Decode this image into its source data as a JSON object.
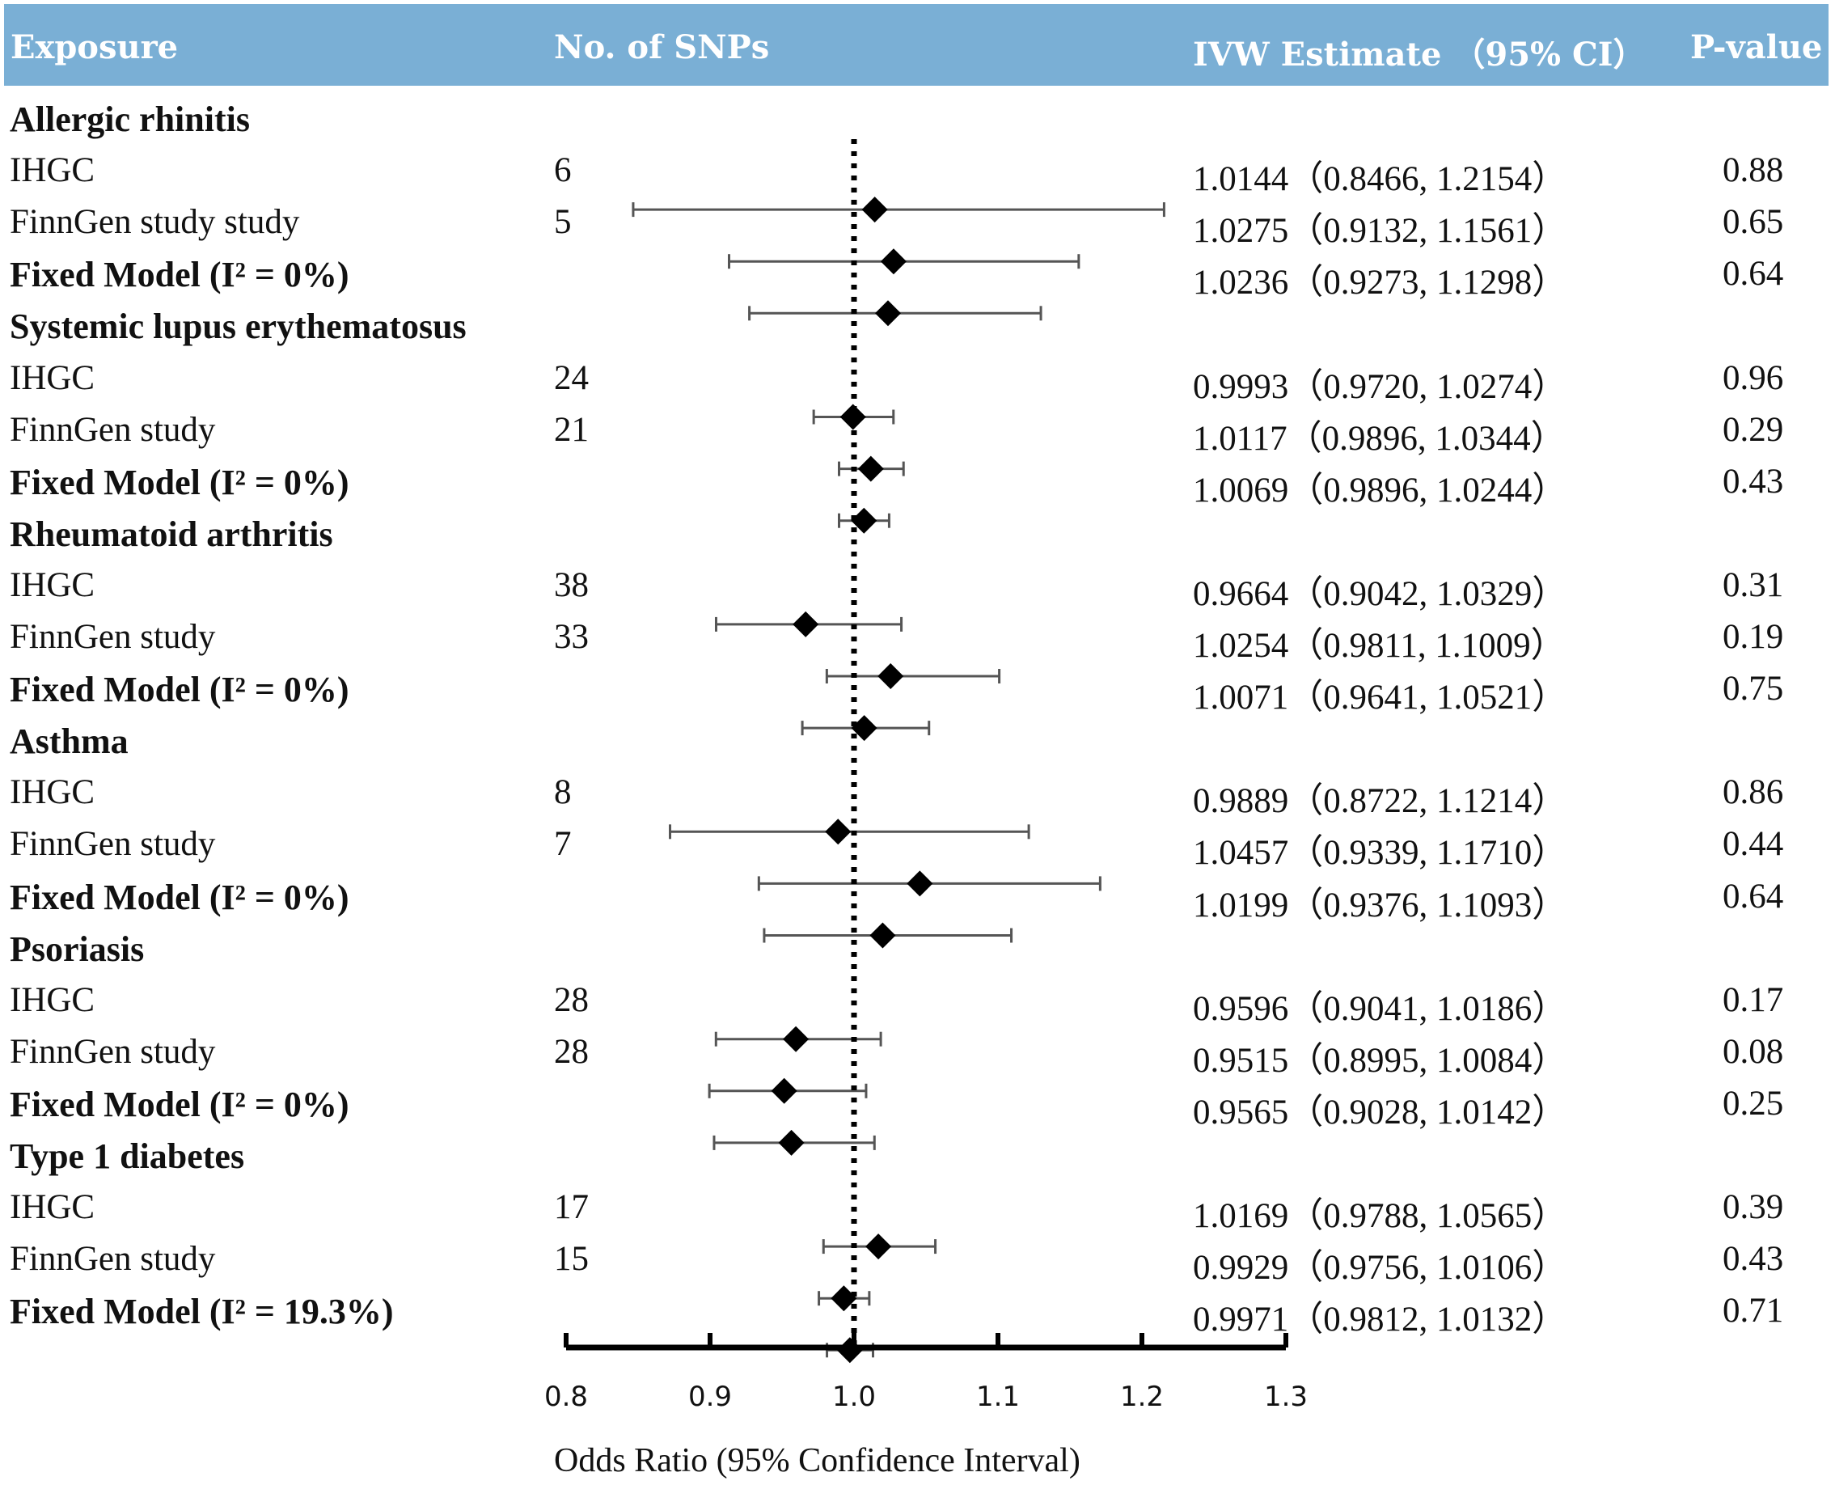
{
  "header": {
    "exposure": "Exposure",
    "snps": "No. of SNPs",
    "estimate": "IVW Estimate （95% CI）",
    "pvalue": "P-value"
  },
  "colors": {
    "header_bg": "#7aafd5",
    "header_text": "#ffffff",
    "marker": "#000000",
    "ci_line": "#555555"
  },
  "rows": [
    {
      "type": "group",
      "label": "Allergic rhinitis"
    },
    {
      "type": "study",
      "label": "IHGC",
      "snps": "6",
      "or": 1.0144,
      "lo": 0.8466,
      "hi": 1.2154,
      "est_text": "1.0144（0.8466, 1.2154）",
      "p": "0.88"
    },
    {
      "type": "study",
      "label": "FinnGen study study",
      "snps": "5",
      "or": 1.0275,
      "lo": 0.9132,
      "hi": 1.1561,
      "est_text": "1.0275（0.9132, 1.1561）",
      "p": "0.65"
    },
    {
      "type": "fixed",
      "label": "Fixed Model (I² = 0%)",
      "snps": "",
      "or": 1.0236,
      "lo": 0.9273,
      "hi": 1.1298,
      "est_text": "1.0236（0.9273, 1.1298）",
      "p": "0.64"
    },
    {
      "type": "group",
      "label": "Systemic lupus erythematosus"
    },
    {
      "type": "study",
      "label": "IHGC",
      "snps": "24",
      "or": 0.9993,
      "lo": 0.972,
      "hi": 1.0274,
      "est_text": "0.9993（0.9720, 1.0274）",
      "p": "0.96"
    },
    {
      "type": "study",
      "label": "FinnGen study",
      "snps": "21",
      "or": 1.0117,
      "lo": 0.9896,
      "hi": 1.0344,
      "est_text": "1.0117（0.9896, 1.0344）",
      "p": "0.29"
    },
    {
      "type": "fixed",
      "label": "Fixed Model (I² = 0%)",
      "snps": "",
      "or": 1.0069,
      "lo": 0.9896,
      "hi": 1.0244,
      "est_text": "1.0069（0.9896, 1.0244）",
      "p": "0.43"
    },
    {
      "type": "group",
      "label": "Rheumatoid arthritis"
    },
    {
      "type": "study",
      "label": "IHGC",
      "snps": "38",
      "or": 0.9664,
      "lo": 0.9042,
      "hi": 1.0329,
      "est_text": "0.9664（0.9042, 1.0329）",
      "p": "0.31"
    },
    {
      "type": "study",
      "label": "FinnGen study",
      "snps": "33",
      "or": 1.0254,
      "lo": 0.9811,
      "hi": 1.1009,
      "est_text": "1.0254（0.9811, 1.1009）",
      "p": "0.19"
    },
    {
      "type": "fixed",
      "label": "Fixed Model (I² = 0%)",
      "snps": "",
      "or": 1.0071,
      "lo": 0.9641,
      "hi": 1.0521,
      "est_text": "1.0071（0.9641, 1.0521）",
      "p": "0.75"
    },
    {
      "type": "group",
      "label": "Asthma"
    },
    {
      "type": "study",
      "label": "IHGC",
      "snps": "8",
      "or": 0.9889,
      "lo": 0.8722,
      "hi": 1.1214,
      "est_text": "0.9889（0.8722, 1.1214）",
      "p": "0.86"
    },
    {
      "type": "study",
      "label": "FinnGen study",
      "snps": "7",
      "or": 1.0457,
      "lo": 0.9339,
      "hi": 1.171,
      "est_text": "1.0457（0.9339, 1.1710）",
      "p": "0.44"
    },
    {
      "type": "fixed",
      "label": "Fixed Model (I² = 0%)",
      "snps": "",
      "or": 1.0199,
      "lo": 0.9376,
      "hi": 1.1093,
      "est_text": "1.0199（0.9376, 1.1093）",
      "p": "0.64"
    },
    {
      "type": "group",
      "label": "Psoriasis"
    },
    {
      "type": "study",
      "label": "IHGC",
      "snps": "28",
      "or": 0.9596,
      "lo": 0.9041,
      "hi": 1.0186,
      "est_text": "0.9596（0.9041, 1.0186）",
      "p": "0.17"
    },
    {
      "type": "study",
      "label": "FinnGen study",
      "snps": "28",
      "or": 0.9515,
      "lo": 0.8995,
      "hi": 1.0084,
      "est_text": "0.9515（0.8995, 1.0084）",
      "p": "0.08"
    },
    {
      "type": "fixed",
      "label": "Fixed Model (I² = 0%)",
      "snps": "",
      "or": 0.9565,
      "lo": 0.9028,
      "hi": 1.0142,
      "est_text": "0.9565（0.9028, 1.0142）",
      "p": "0.25"
    },
    {
      "type": "group",
      "label": "Type 1 diabetes"
    },
    {
      "type": "study",
      "label": "IHGC",
      "snps": "17",
      "or": 1.0169,
      "lo": 0.9788,
      "hi": 1.0565,
      "est_text": "1.0169（0.9788, 1.0565）",
      "p": "0.39"
    },
    {
      "type": "study",
      "label": "FinnGen study",
      "snps": "15",
      "or": 0.9929,
      "lo": 0.9756,
      "hi": 1.0106,
      "est_text": "0.9929（0.9756, 1.0106）",
      "p": "0.43"
    },
    {
      "type": "fixed",
      "label": "Fixed Model (I² = 19.3%)",
      "snps": "",
      "or": 0.9971,
      "lo": 0.9812,
      "hi": 1.0132,
      "est_text": "0.9971（0.9812, 1.0132）",
      "p": "0.71"
    }
  ],
  "chart_data": {
    "type": "forest",
    "xlabel": "Odds Ratio (95% Confidence Interval)",
    "xlim": [
      0.8,
      1.3
    ],
    "ticks": [
      0.8,
      0.9,
      1.0,
      1.1,
      1.2,
      1.3
    ],
    "tick_labels": [
      "0.8",
      "0.9",
      "1.0",
      "1.1",
      "1.2",
      "1.3"
    ],
    "reference_line": 1.0,
    "groups": [
      {
        "exposure": "Allergic rhinitis",
        "studies": [
          {
            "name": "IHGC",
            "snps": 6,
            "or": 1.0144,
            "ci": [
              0.8466,
              1.2154
            ],
            "p": 0.88
          },
          {
            "name": "FinnGen study study",
            "snps": 5,
            "or": 1.0275,
            "ci": [
              0.9132,
              1.1561
            ],
            "p": 0.65
          },
          {
            "name": "Fixed Model (I² = 0%)",
            "or": 1.0236,
            "ci": [
              0.9273,
              1.1298
            ],
            "p": 0.64
          }
        ]
      },
      {
        "exposure": "Systemic lupus erythematosus",
        "studies": [
          {
            "name": "IHGC",
            "snps": 24,
            "or": 0.9993,
            "ci": [
              0.972,
              1.0274
            ],
            "p": 0.96
          },
          {
            "name": "FinnGen study",
            "snps": 21,
            "or": 1.0117,
            "ci": [
              0.9896,
              1.0344
            ],
            "p": 0.29
          },
          {
            "name": "Fixed Model (I² = 0%)",
            "or": 1.0069,
            "ci": [
              0.9896,
              1.0244
            ],
            "p": 0.43
          }
        ]
      },
      {
        "exposure": "Rheumatoid arthritis",
        "studies": [
          {
            "name": "IHGC",
            "snps": 38,
            "or": 0.9664,
            "ci": [
              0.9042,
              1.0329
            ],
            "p": 0.31
          },
          {
            "name": "FinnGen study",
            "snps": 33,
            "or": 1.0254,
            "ci": [
              0.9811,
              1.1009
            ],
            "p": 0.19
          },
          {
            "name": "Fixed Model (I² = 0%)",
            "or": 1.0071,
            "ci": [
              0.9641,
              1.0521
            ],
            "p": 0.75
          }
        ]
      },
      {
        "exposure": "Asthma",
        "studies": [
          {
            "name": "IHGC",
            "snps": 8,
            "or": 0.9889,
            "ci": [
              0.8722,
              1.1214
            ],
            "p": 0.86
          },
          {
            "name": "FinnGen study",
            "snps": 7,
            "or": 1.0457,
            "ci": [
              0.9339,
              1.171
            ],
            "p": 0.44
          },
          {
            "name": "Fixed Model (I² = 0%)",
            "or": 1.0199,
            "ci": [
              0.9376,
              1.1093
            ],
            "p": 0.64
          }
        ]
      },
      {
        "exposure": "Psoriasis",
        "studies": [
          {
            "name": "IHGC",
            "snps": 28,
            "or": 0.9596,
            "ci": [
              0.9041,
              1.0186
            ],
            "p": 0.17
          },
          {
            "name": "FinnGen study",
            "snps": 28,
            "or": 0.9515,
            "ci": [
              0.8995,
              1.0084
            ],
            "p": 0.08
          },
          {
            "name": "Fixed Model (I² = 0%)",
            "or": 0.9565,
            "ci": [
              0.9028,
              1.0142
            ],
            "p": 0.25
          }
        ]
      },
      {
        "exposure": "Type 1 diabetes",
        "studies": [
          {
            "name": "IHGC",
            "snps": 17,
            "or": 1.0169,
            "ci": [
              0.9788,
              1.0565
            ],
            "p": 0.39
          },
          {
            "name": "FinnGen study",
            "snps": 15,
            "or": 0.9929,
            "ci": [
              0.9756,
              1.0106
            ],
            "p": 0.43
          },
          {
            "name": "Fixed Model (I² = 19.3%)",
            "or": 0.9971,
            "ci": [
              0.9812,
              1.0132
            ],
            "p": 0.71
          }
        ]
      }
    ]
  }
}
